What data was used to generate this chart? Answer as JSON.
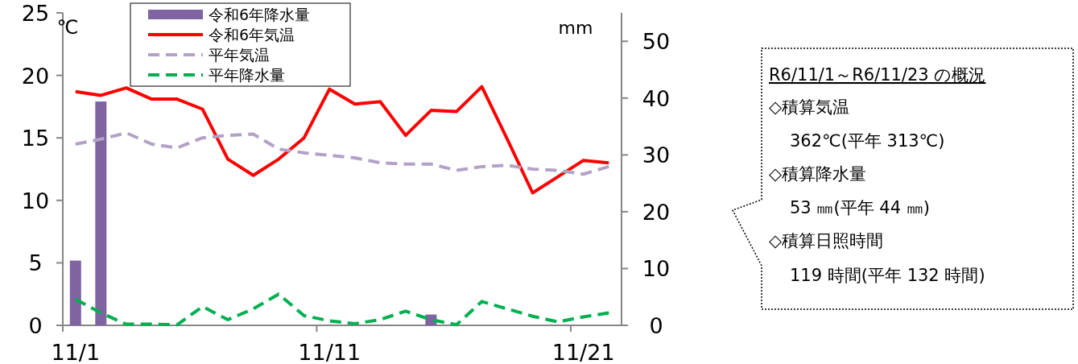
{
  "chart_data": {
    "type": "bar",
    "ylabel": "℃",
    "y2label": "mm",
    "categories": [
      "11/1",
      null,
      null,
      null,
      null,
      null,
      null,
      null,
      null,
      null,
      "11/11",
      null,
      null,
      null,
      null,
      null,
      null,
      null,
      null,
      null,
      "11/21",
      null
    ],
    "series": [
      {
        "name": "令和6年降水量",
        "axis": "y2",
        "color": "#8064a2",
        "values": [
          11.4,
          39.4,
          0,
          0,
          0,
          0,
          0,
          0,
          0,
          0,
          0,
          0,
          0,
          0,
          1.9,
          0,
          0,
          0,
          0,
          0,
          0,
          0
        ]
      },
      {
        "name": "令和6年気温",
        "type": "line",
        "color": "#ff0000",
        "line_style": "solid",
        "values": [
          18.7,
          18.4,
          19.0,
          18.1,
          18.1,
          17.3,
          13.3,
          12.0,
          13.3,
          15.0,
          18.9,
          17.7,
          17.9,
          15.2,
          17.2,
          17.1,
          19.1,
          14.9,
          10.6,
          11.9,
          13.2,
          13.0
        ]
      },
      {
        "name": "平年気温",
        "type": "line",
        "color": "#b3a2c7",
        "line_style": "dashed",
        "values": [
          14.5,
          14.9,
          15.4,
          14.5,
          14.2,
          15.0,
          15.2,
          15.3,
          14.1,
          13.8,
          13.6,
          13.4,
          13.0,
          12.9,
          12.9,
          12.4,
          12.7,
          12.8,
          12.5,
          12.4,
          12.1,
          12.7
        ]
      },
      {
        "name": "平年降水量",
        "type": "line",
        "axis": "y2",
        "color": "#00b050",
        "line_style": "dashed",
        "values": [
          4.6,
          2.2,
          0.2,
          0.2,
          0.1,
          3.3,
          1.0,
          2.9,
          5.5,
          1.7,
          0.8,
          0.3,
          1.0,
          2.5,
          1.0,
          0.1,
          4.2,
          2.9,
          1.6,
          0.6,
          1.5,
          2.2
        ]
      }
    ],
    "ylim": [
      0,
      25
    ],
    "yticks": [
      0,
      5,
      10,
      15,
      20,
      25
    ],
    "y2lim": [
      0,
      55
    ],
    "y2ticks": [
      0,
      10,
      20,
      30,
      40,
      50
    ],
    "legend": "top left",
    "grid": false,
    "annotations": [
      "R6/11/1～R6/11/23 の概況",
      "◇積算気温",
      "362℃(平年 313℃)",
      "◇積算降水量",
      "53 ㎜(平年 44 ㎜)",
      "◇積算日照時間",
      "119 時間(平年 132 時間)"
    ]
  }
}
